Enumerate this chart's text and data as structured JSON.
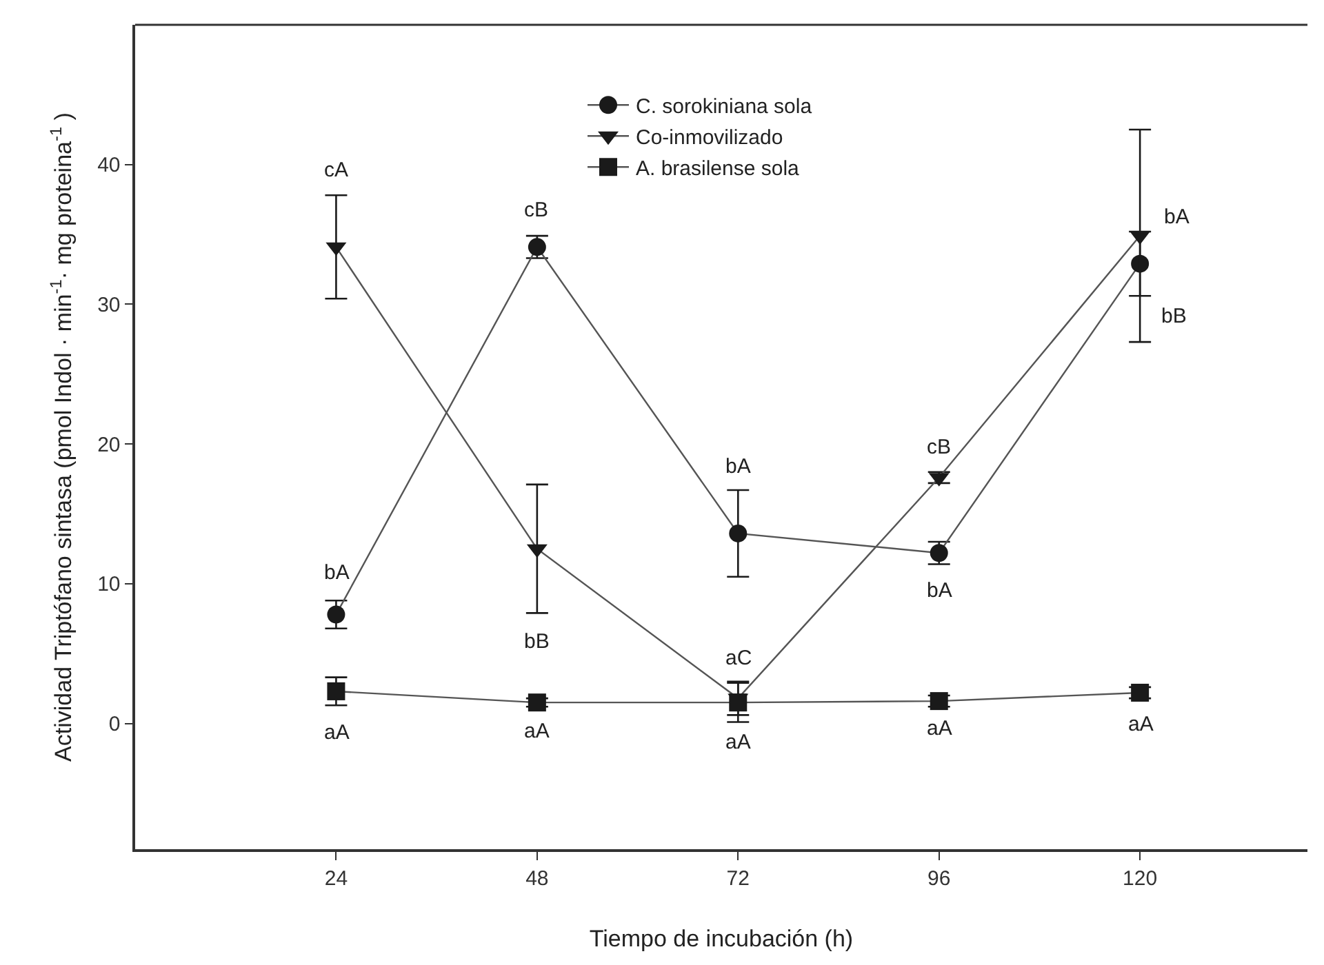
{
  "chart_data": {
    "type": "line",
    "xlabel": "Tiempo de incubación (h)",
    "ylabel": "Actividad Triptófano sintasa (pmol Indol · min$^{-1}$· mg proteina$^{-1}$ )",
    "x": [
      24,
      48,
      72,
      96,
      120
    ],
    "xlim": [
      0,
      140
    ],
    "xticks": [
      24,
      48,
      72,
      96,
      120
    ],
    "ylim": [
      -9,
      50
    ],
    "yticks": [
      0,
      10,
      20,
      30,
      40
    ],
    "legend": "top",
    "line_style": "solid",
    "series": [
      {
        "name": "C. sorokiniana sola",
        "color": "#1a1a1a",
        "marker": "circle",
        "values": [
          7.8,
          34.1,
          13.6,
          12.2,
          32.9
        ],
        "errors": [
          1.0,
          0.8,
          3.1,
          0.8,
          2.3
        ]
      },
      {
        "name": "Co-inmovilizado",
        "color": "#1a1a1a",
        "marker": "triangle",
        "values": [
          34.1,
          12.5,
          1.8,
          17.6,
          34.9
        ],
        "errors": [
          3.7,
          4.6,
          1.2,
          0.4,
          7.6
        ]
      },
      {
        "name": "A. brasilense sola",
        "color": "#1a1a1a",
        "marker": "square",
        "values": [
          2.3,
          1.5,
          1.5,
          1.6,
          2.2
        ],
        "errors": [
          1.0,
          0.3,
          1.4,
          0.4,
          0.4
        ]
      }
    ],
    "annotations": [
      {
        "text": "cA",
        "x": 24,
        "y": 37.8
      },
      {
        "text": "cB",
        "x": 48,
        "y": 34.1
      },
      {
        "text": "bA",
        "x": 24,
        "y": 7.8
      },
      {
        "text": "bB",
        "x": 48,
        "y": 7.9
      },
      {
        "text": "bA",
        "x": 72,
        "y": 13.6
      },
      {
        "text": "aC",
        "x": 72,
        "y": 1.8
      },
      {
        "text": "cB",
        "x": 96,
        "y": 17.6
      },
      {
        "text": "bA",
        "x": 96,
        "y": 12.2
      },
      {
        "text": "bA",
        "x": 120,
        "y": 34.9
      },
      {
        "text": "bB",
        "x": 120,
        "y": 32.9
      },
      {
        "text": "aA",
        "x": 24,
        "y": 2.3
      },
      {
        "text": "aA",
        "x": 48,
        "y": 1.5
      },
      {
        "text": "aA",
        "x": 72,
        "y": 1.5
      },
      {
        "text": "aA",
        "x": 96,
        "y": 1.6
      },
      {
        "text": "aA",
        "x": 120,
        "y": 2.2
      }
    ]
  }
}
